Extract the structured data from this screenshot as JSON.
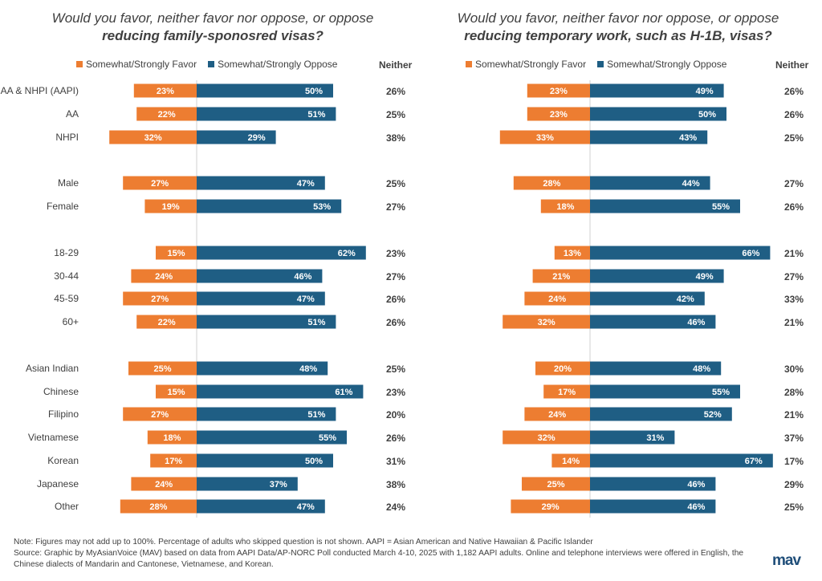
{
  "colors": {
    "favor": "#ED7D31",
    "oppose": "#1F5E84",
    "axis": "#d0d0d0",
    "text": "#404040"
  },
  "legend": {
    "favor": "Somewhat/Strongly Favor",
    "oppose": "Somewhat/Strongly Oppose",
    "neither": "Neither"
  },
  "footnote": {
    "note": "Note: Figures may not add up to 100%. Percentage of adults who skipped  question is not shown.  AAPI = Asian American and Native Hawaiian & Pacific Islander",
    "source": "Source:  Graphic by MyAsianVoice (MAV) based on data from AAPI Data/AP-NORC Poll conducted March 4-10, 2025 with 1,182 AAPI adults. Online and  telephone interviews were offered in English, the Chinese dialects of Mandarin and Cantonese, Vietnamese, and Korean."
  },
  "logo": {
    "text": "mav"
  },
  "chart_data": [
    {
      "type": "bar",
      "title_line1": "Would you favor, neither favor nor oppose, or oppose",
      "title_line2": "reducing family-sponosred visas?",
      "categories": [
        "AA & NHPI (AAPI)",
        "AA",
        "NHPI",
        "Male",
        "Female",
        "18-29",
        "30-44",
        "45-59",
        "60+",
        "Asian Indian",
        "Chinese",
        "Filipino",
        "Vietnamese",
        "Korean",
        "Japanese",
        "Other"
      ],
      "series": [
        {
          "name": "Somewhat/Strongly Favor",
          "values": [
            23,
            22,
            32,
            27,
            19,
            15,
            24,
            27,
            22,
            25,
            15,
            27,
            18,
            17,
            24,
            28
          ]
        },
        {
          "name": "Somewhat/Strongly Oppose",
          "values": [
            50,
            51,
            29,
            47,
            53,
            62,
            46,
            47,
            51,
            48,
            61,
            51,
            55,
            50,
            37,
            47
          ]
        },
        {
          "name": "Neither",
          "values": [
            26,
            25,
            38,
            25,
            27,
            23,
            27,
            26,
            26,
            25,
            23,
            20,
            26,
            31,
            38,
            24
          ]
        }
      ]
    },
    {
      "type": "bar",
      "title_line1": "Would you favor, neither favor nor oppose, or oppose",
      "title_line2": "reducing temporary work, such as H-1B, visas?",
      "categories": [
        "AA & NHPI (AAPI)",
        "AA",
        "NHPI",
        "Male",
        "Female",
        "18-29",
        "30-44",
        "45-59",
        "60+",
        "Asian Indian",
        "Chinese",
        "Filipino",
        "Vietnamese",
        "Korean",
        "Japanese",
        "Other"
      ],
      "series": [
        {
          "name": "Somewhat/Strongly Favor",
          "values": [
            23,
            23,
            33,
            28,
            18,
            13,
            21,
            24,
            32,
            20,
            17,
            24,
            32,
            14,
            25,
            29
          ]
        },
        {
          "name": "Somewhat/Strongly Oppose",
          "values": [
            49,
            50,
            43,
            44,
            55,
            66,
            49,
            42,
            46,
            48,
            55,
            52,
            31,
            67,
            46,
            46
          ]
        },
        {
          "name": "Neither",
          "values": [
            26,
            26,
            25,
            27,
            26,
            21,
            27,
            33,
            21,
            30,
            28,
            21,
            37,
            17,
            29,
            25
          ]
        }
      ]
    }
  ]
}
